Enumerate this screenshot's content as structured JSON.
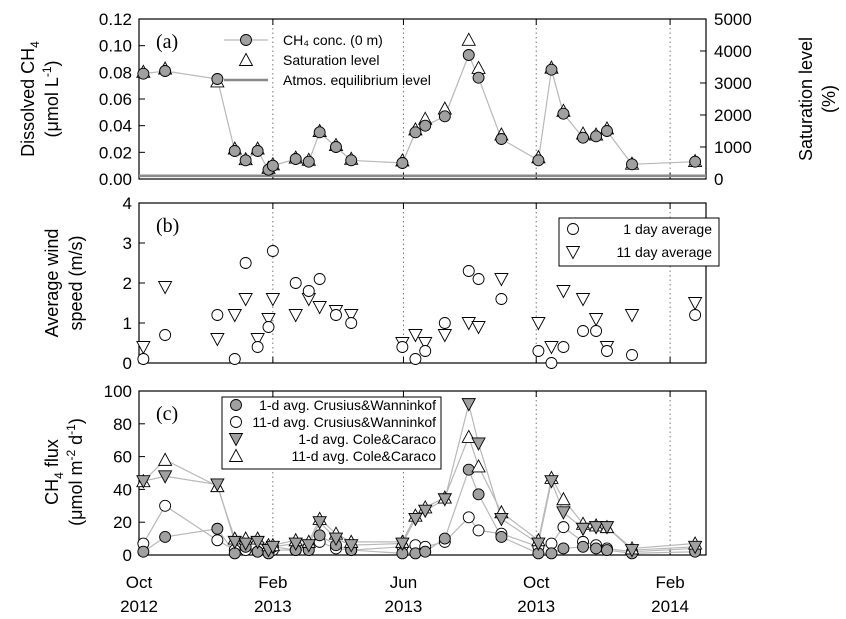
{
  "chart_data": [
    {
      "panel": "(a)",
      "type": "scatter",
      "ylabel_lines": [
        "Dissolved CH",
        "4",
        "(μmol L",
        "-1",
        ")"
      ],
      "y2label_lines": [
        "Saturation level",
        "(%)"
      ],
      "ylim": [
        0,
        0.12
      ],
      "yticks": [
        "0.00",
        "0.02",
        "0.04",
        "0.06",
        "0.08",
        "0.10",
        "0.12"
      ],
      "y2lim": [
        0,
        5000
      ],
      "y2ticks": [
        "0",
        "1000",
        "2000",
        "3000",
        "4000",
        "5000"
      ],
      "legend_position": "top-center",
      "series": [
        {
          "name": "CH₄ conc. (0 m)",
          "marker": "circle-filled",
          "axis": "left",
          "x": [
            "2012-10-05",
            "2012-10-25",
            "2012-12-12",
            "2012-12-28",
            "2013-01-07",
            "2013-01-18",
            "2013-01-28",
            "2013-02-01",
            "2013-02-22",
            "2013-03-06",
            "2013-03-16",
            "2013-03-31",
            "2013-04-14",
            "2013-05-31",
            "2013-06-12",
            "2013-06-21",
            "2013-07-09",
            "2013-07-31",
            "2013-08-09",
            "2013-08-30",
            "2013-10-03",
            "2013-10-15",
            "2013-10-26",
            "2013-11-13",
            "2013-11-25",
            "2013-12-05",
            "2013-12-28",
            "2014-02-24"
          ],
          "values": [
            0.079,
            0.081,
            0.075,
            0.021,
            0.014,
            0.021,
            0.007,
            0.01,
            0.015,
            0.013,
            0.035,
            0.024,
            0.014,
            0.012,
            0.035,
            0.04,
            0.047,
            0.093,
            0.076,
            0.03,
            0.014,
            0.082,
            0.049,
            0.031,
            0.032,
            0.036,
            0.011,
            0.013
          ]
        },
        {
          "name": "Saturation level",
          "marker": "triangle-open",
          "axis": "right",
          "x": [
            "2012-10-05",
            "2012-10-25",
            "2012-12-12",
            "2012-12-28",
            "2013-01-07",
            "2013-01-18",
            "2013-01-28",
            "2013-02-01",
            "2013-02-22",
            "2013-03-06",
            "2013-03-16",
            "2013-03-31",
            "2013-04-14",
            "2013-05-31",
            "2013-06-12",
            "2013-06-21",
            "2013-07-09",
            "2013-07-31",
            "2013-08-09",
            "2013-08-30",
            "2013-10-03",
            "2013-10-15",
            "2013-10-26",
            "2013-11-13",
            "2013-11-25",
            "2013-12-05",
            "2013-12-28",
            "2014-02-24"
          ],
          "values": [
            3350,
            3450,
            3050,
            950,
            620,
            950,
            350,
            460,
            670,
            600,
            1500,
            1060,
            630,
            580,
            1550,
            1880,
            2200,
            4350,
            3470,
            1390,
            680,
            3480,
            2130,
            1420,
            1390,
            1580,
            480,
            560
          ]
        },
        {
          "name": "Atmos. equilibrium level",
          "marker": "line",
          "axis": "right",
          "x": [
            "2012-10-01",
            "2014-03-06"
          ],
          "values": [
            100,
            100
          ]
        }
      ]
    },
    {
      "panel": "(b)",
      "type": "scatter",
      "ylabel_lines": [
        "Average wind",
        "speed (m/s)"
      ],
      "ylim": [
        0,
        4
      ],
      "yticks": [
        "0",
        "1",
        "2",
        "3",
        "4"
      ],
      "legend_position": "top-right",
      "series": [
        {
          "name": "1 day average",
          "marker": "circle-open",
          "x": [
            "2012-10-05",
            "2012-10-25",
            "2012-12-12",
            "2012-12-28",
            "2013-01-07",
            "2013-01-18",
            "2013-01-28",
            "2013-02-01",
            "2013-02-22",
            "2013-03-06",
            "2013-03-16",
            "2013-03-31",
            "2013-04-14",
            "2013-05-31",
            "2013-06-12",
            "2013-06-21",
            "2013-07-09",
            "2013-07-31",
            "2013-08-09",
            "2013-08-30",
            "2013-10-03",
            "2013-10-15",
            "2013-10-26",
            "2013-11-13",
            "2013-11-25",
            "2013-12-05",
            "2013-12-28",
            "2014-02-24"
          ],
          "values": [
            0.1,
            0.7,
            1.2,
            0.1,
            2.5,
            0.4,
            0.9,
            2.8,
            2.0,
            1.8,
            2.1,
            1.2,
            1.0,
            0.4,
            0.1,
            0.3,
            1.0,
            2.3,
            2.1,
            1.6,
            0.3,
            0.0,
            0.4,
            0.8,
            0.8,
            0.3,
            0.2,
            1.2
          ]
        },
        {
          "name": "11 day average",
          "marker": "triangle-down-open",
          "x": [
            "2012-10-05",
            "2012-10-25",
            "2012-12-12",
            "2012-12-28",
            "2013-01-07",
            "2013-01-18",
            "2013-01-28",
            "2013-02-01",
            "2013-02-22",
            "2013-03-06",
            "2013-03-16",
            "2013-03-31",
            "2013-04-14",
            "2013-05-31",
            "2013-06-12",
            "2013-06-21",
            "2013-07-09",
            "2013-07-31",
            "2013-08-09",
            "2013-08-30",
            "2013-10-03",
            "2013-10-15",
            "2013-10-26",
            "2013-11-13",
            "2013-11-25",
            "2013-12-05",
            "2013-12-28",
            "2014-02-24"
          ],
          "values": [
            0.4,
            1.9,
            0.6,
            1.2,
            1.6,
            0.6,
            1.1,
            1.6,
            1.2,
            1.6,
            1.4,
            1.3,
            1.2,
            0.5,
            0.7,
            0.5,
            0.7,
            1.0,
            0.9,
            2.1,
            1.0,
            0.4,
            1.8,
            1.6,
            1.1,
            0.4,
            1.2,
            1.5
          ]
        }
      ]
    },
    {
      "panel": "(c)",
      "type": "line",
      "ylabel_lines": [
        "CH",
        "4",
        " flux",
        "(μmol m",
        "-2",
        " d",
        "-1",
        ")"
      ],
      "ylim": [
        0,
        100
      ],
      "yticks": [
        "0",
        "20",
        "40",
        "60",
        "80",
        "100"
      ],
      "legend_position": "top-left",
      "series": [
        {
          "name": "1-d avg. Crusius&Wanninkof",
          "marker": "circle-filled",
          "x": [
            "2012-10-05",
            "2012-10-25",
            "2012-12-12",
            "2012-12-28",
            "2013-01-07",
            "2013-01-18",
            "2013-01-28",
            "2013-02-01",
            "2013-02-22",
            "2013-03-06",
            "2013-03-16",
            "2013-03-31",
            "2013-04-14",
            "2013-05-31",
            "2013-06-12",
            "2013-06-21",
            "2013-07-09",
            "2013-07-31",
            "2013-08-09",
            "2013-08-30",
            "2013-10-03",
            "2013-10-15",
            "2013-10-26",
            "2013-11-13",
            "2013-11-25",
            "2013-12-05",
            "2013-12-28",
            "2014-02-24"
          ],
          "values": [
            2,
            11,
            16,
            1,
            5,
            2,
            1,
            5,
            3,
            3,
            12,
            6,
            3,
            1,
            1,
            2,
            10,
            52,
            37,
            11,
            1,
            1,
            4,
            5,
            4,
            3,
            1,
            2
          ]
        },
        {
          "name": "11-d avg. Crusius&Wanninkof",
          "marker": "circle-open",
          "x": [
            "2012-10-05",
            "2012-10-25",
            "2012-12-12",
            "2012-12-28",
            "2013-01-07",
            "2013-01-18",
            "2013-01-28",
            "2013-02-01",
            "2013-02-22",
            "2013-03-06",
            "2013-03-16",
            "2013-03-31",
            "2013-04-14",
            "2013-05-31",
            "2013-06-12",
            "2013-06-21",
            "2013-07-09",
            "2013-07-31",
            "2013-08-09",
            "2013-08-30",
            "2013-10-03",
            "2013-10-15",
            "2013-10-26",
            "2013-11-13",
            "2013-11-25",
            "2013-12-05",
            "2013-12-28",
            "2014-02-24"
          ],
          "values": [
            7,
            30,
            9,
            3,
            3,
            2,
            3,
            3,
            3,
            5,
            8,
            4,
            3,
            5,
            6,
            5,
            8,
            23,
            15,
            13,
            5,
            7,
            17,
            8,
            6,
            4,
            2,
            4
          ]
        },
        {
          "name": "1-d avg. Cole&Caraco",
          "marker": "triangle-down-filled",
          "x": [
            "2012-10-05",
            "2012-10-25",
            "2012-12-12",
            "2012-12-28",
            "2013-01-07",
            "2013-01-18",
            "2013-01-28",
            "2013-02-01",
            "2013-02-22",
            "2013-03-06",
            "2013-03-16",
            "2013-03-31",
            "2013-04-14",
            "2013-05-31",
            "2013-06-12",
            "2013-06-21",
            "2013-07-09",
            "2013-07-31",
            "2013-08-09",
            "2013-08-30",
            "2013-10-03",
            "2013-10-15",
            "2013-10-26",
            "2013-11-13",
            "2013-11-25",
            "2013-12-05",
            "2013-12-28",
            "2014-02-24"
          ],
          "values": [
            45,
            48,
            43,
            8,
            7,
            8,
            3,
            5,
            7,
            6,
            20,
            10,
            6,
            7,
            22,
            27,
            34,
            92,
            68,
            22,
            7,
            45,
            26,
            16,
            17,
            17,
            3,
            5
          ]
        },
        {
          "name": "11-d avg. Cole&Caraco",
          "marker": "triangle-up-open",
          "x": [
            "2012-10-05",
            "2012-10-25",
            "2012-12-12",
            "2012-12-28",
            "2013-01-07",
            "2013-01-18",
            "2013-01-28",
            "2013-02-01",
            "2013-02-22",
            "2013-03-06",
            "2013-03-16",
            "2013-03-31",
            "2013-04-14",
            "2013-05-31",
            "2013-06-12",
            "2013-06-21",
            "2013-07-09",
            "2013-07-31",
            "2013-08-09",
            "2013-08-30",
            "2013-10-03",
            "2013-10-15",
            "2013-10-26",
            "2013-11-13",
            "2013-11-25",
            "2013-12-05",
            "2013-12-28",
            "2014-02-24"
          ],
          "values": [
            45,
            58,
            42,
            10,
            10,
            10,
            6,
            6,
            9,
            8,
            22,
            13,
            8,
            8,
            24,
            29,
            35,
            72,
            54,
            26,
            9,
            47,
            34,
            19,
            18,
            17,
            4,
            7
          ]
        }
      ]
    }
  ],
  "x_axis": {
    "range": [
      "2012-10-01",
      "2014-03-06"
    ],
    "ticks": [
      {
        "date": "2012-10-01",
        "month": "Oct",
        "year": "2012"
      },
      {
        "date": "2013-02-01",
        "month": "Feb",
        "year": "2013"
      },
      {
        "date": "2013-06-01",
        "month": "Jun",
        "year": "2013"
      },
      {
        "date": "2013-10-01",
        "month": "Oct",
        "year": "2013"
      },
      {
        "date": "2014-02-01",
        "month": "Feb",
        "year": "2014"
      }
    ],
    "vertical_dotted_lines": true
  }
}
